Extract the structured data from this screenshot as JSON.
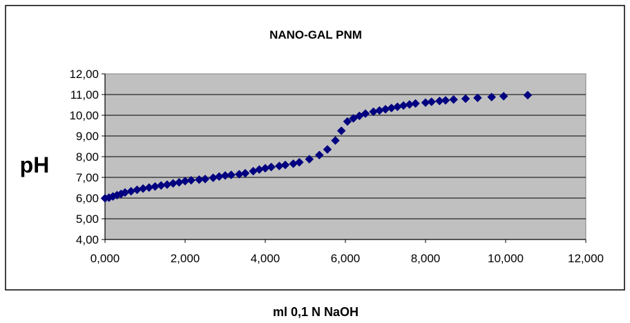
{
  "chart_data": {
    "type": "scatter",
    "title": "NANO-GAL PNM",
    "xlabel": "ml 0,1 N NaOH",
    "ylabel": "pH",
    "xlim": [
      0,
      12
    ],
    "ylim": [
      4,
      12
    ],
    "x_ticks": [
      "0,000",
      "2,000",
      "4,000",
      "6,000",
      "8,000",
      "10,000",
      "12,000"
    ],
    "y_ticks": [
      "4,00",
      "5,00",
      "6,00",
      "7,00",
      "8,00",
      "9,00",
      "10,00",
      "11,00",
      "12,00"
    ],
    "grid": "horizontal",
    "legend": "none",
    "colors": {
      "plot_background": "#c0c0c0",
      "marker": "#000080",
      "gridline": "#000000"
    },
    "series": [
      {
        "marker": "diamond",
        "points": [
          [
            0.0,
            5.99
          ],
          [
            0.1,
            6.02
          ],
          [
            0.2,
            6.08
          ],
          [
            0.3,
            6.14
          ],
          [
            0.4,
            6.2
          ],
          [
            0.5,
            6.27
          ],
          [
            0.65,
            6.33
          ],
          [
            0.8,
            6.4
          ],
          [
            0.95,
            6.46
          ],
          [
            1.1,
            6.51
          ],
          [
            1.25,
            6.56
          ],
          [
            1.4,
            6.61
          ],
          [
            1.55,
            6.65
          ],
          [
            1.7,
            6.71
          ],
          [
            1.85,
            6.76
          ],
          [
            2.0,
            6.82
          ],
          [
            2.15,
            6.86
          ],
          [
            2.35,
            6.89
          ],
          [
            2.5,
            6.92
          ],
          [
            2.7,
            6.98
          ],
          [
            2.85,
            7.04
          ],
          [
            3.0,
            7.09
          ],
          [
            3.15,
            7.12
          ],
          [
            3.35,
            7.15
          ],
          [
            3.5,
            7.2
          ],
          [
            3.7,
            7.3
          ],
          [
            3.85,
            7.38
          ],
          [
            4.0,
            7.44
          ],
          [
            4.15,
            7.5
          ],
          [
            4.35,
            7.55
          ],
          [
            4.5,
            7.6
          ],
          [
            4.7,
            7.66
          ],
          [
            4.85,
            7.73
          ],
          [
            5.1,
            7.88
          ],
          [
            5.35,
            8.08
          ],
          [
            5.55,
            8.35
          ],
          [
            5.75,
            8.78
          ],
          [
            5.9,
            9.25
          ],
          [
            6.05,
            9.7
          ],
          [
            6.2,
            9.85
          ],
          [
            6.35,
            9.97
          ],
          [
            6.5,
            10.08
          ],
          [
            6.7,
            10.17
          ],
          [
            6.85,
            10.23
          ],
          [
            7.0,
            10.29
          ],
          [
            7.15,
            10.35
          ],
          [
            7.3,
            10.41
          ],
          [
            7.45,
            10.47
          ],
          [
            7.6,
            10.52
          ],
          [
            7.75,
            10.57
          ],
          [
            8.0,
            10.61
          ],
          [
            8.15,
            10.65
          ],
          [
            8.35,
            10.69
          ],
          [
            8.5,
            10.72
          ],
          [
            8.7,
            10.76
          ],
          [
            9.0,
            10.8
          ],
          [
            9.3,
            10.84
          ],
          [
            9.65,
            10.88
          ],
          [
            9.95,
            10.92
          ],
          [
            10.55,
            10.97
          ]
        ]
      }
    ]
  }
}
